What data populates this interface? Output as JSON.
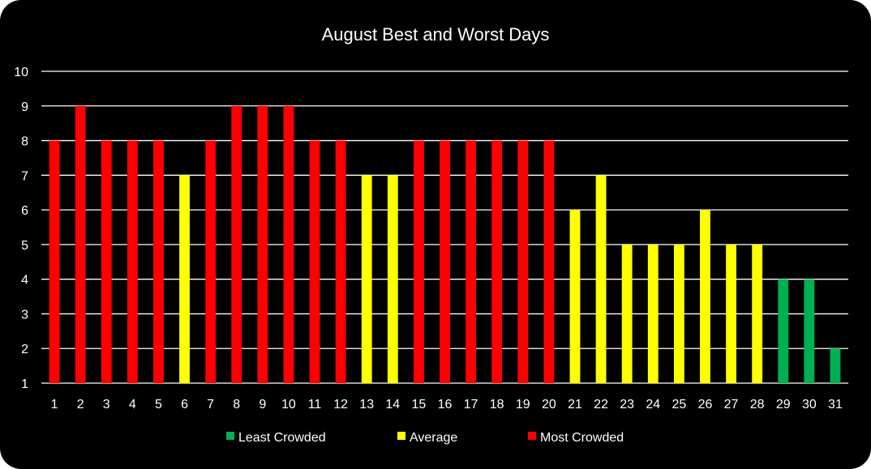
{
  "chart_data": {
    "type": "bar",
    "title": "August Best and Worst Days",
    "xlabel": "",
    "ylabel": "",
    "ylim": [
      1,
      10
    ],
    "yticks": [
      1,
      2,
      3,
      4,
      5,
      6,
      7,
      8,
      9,
      10
    ],
    "grid": true,
    "legend_position": "bottom",
    "categories": [
      "1",
      "2",
      "3",
      "4",
      "5",
      "6",
      "7",
      "8",
      "9",
      "10",
      "11",
      "12",
      "13",
      "14",
      "15",
      "16",
      "17",
      "18",
      "19",
      "20",
      "21",
      "22",
      "23",
      "24",
      "25",
      "26",
      "27",
      "28",
      "29",
      "30",
      "31"
    ],
    "values": [
      8,
      9,
      8,
      8,
      8,
      7,
      8,
      9,
      9,
      9,
      8,
      8,
      7,
      7,
      8,
      8,
      8,
      8,
      8,
      8,
      6,
      7,
      5,
      5,
      5,
      6,
      5,
      5,
      4,
      4,
      2
    ],
    "levels": [
      "most",
      "most",
      "most",
      "most",
      "most",
      "average",
      "most",
      "most",
      "most",
      "most",
      "most",
      "most",
      "average",
      "average",
      "most",
      "most",
      "most",
      "most",
      "most",
      "most",
      "average",
      "average",
      "average",
      "average",
      "average",
      "average",
      "average",
      "average",
      "least",
      "least",
      "least"
    ],
    "series": [
      {
        "key": "least",
        "name": "Least Crowded",
        "color": "#00b050"
      },
      {
        "key": "average",
        "name": "Average",
        "color": "#ffff00"
      },
      {
        "key": "most",
        "name": "Most Crowded",
        "color": "#ff0000"
      }
    ]
  }
}
